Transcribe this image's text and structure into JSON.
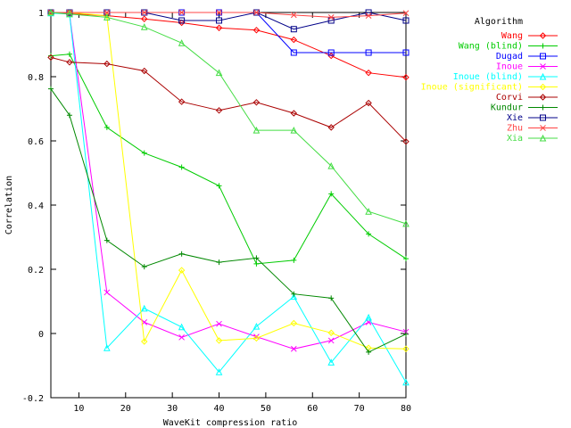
{
  "chart_data": {
    "type": "line",
    "title": "",
    "xlabel": "WaveKit compression ratio",
    "ylabel": "Correlation",
    "xlim": [
      4,
      80
    ],
    "ylim": [
      -0.2,
      1
    ],
    "xticks": [
      10,
      20,
      30,
      40,
      50,
      60,
      70,
      80
    ],
    "xtick_labels": [
      "10",
      "20",
      "30",
      "40",
      "50",
      "60",
      "70",
      "80"
    ],
    "yticks": [
      -0.2,
      0,
      0.2,
      0.4,
      0.6,
      0.8,
      1
    ],
    "ytick_labels": [
      "-0.2",
      "0",
      "0.2",
      "0.4",
      "0.6",
      "0.8",
      "1"
    ],
    "grid": false,
    "legend_title": "Algorithm",
    "legend_position": "outside right",
    "series": [
      {
        "name": "Wang",
        "color": "#ff0000",
        "marker": "diamond",
        "x": [
          4,
          8,
          16,
          24,
          32,
          40,
          48,
          56,
          64,
          72,
          80
        ],
        "y": [
          1.0,
          0.996,
          0.99,
          0.98,
          0.968,
          0.952,
          0.945,
          0.915,
          0.865,
          0.812,
          0.798
        ]
      },
      {
        "name": "Wang (blind)",
        "color": "#00cc00",
        "marker": "plus",
        "x": [
          4,
          8,
          16,
          24,
          32,
          40,
          48,
          56,
          64,
          72,
          80
        ],
        "y": [
          0.865,
          0.87,
          0.642,
          0.562,
          0.518,
          0.46,
          0.217,
          0.228,
          0.435,
          0.31,
          0.233
        ]
      },
      {
        "name": "Dugad",
        "color": "#0000ff",
        "marker": "square",
        "x": [
          4,
          8,
          16,
          24,
          32,
          40,
          48,
          56,
          64,
          72,
          80
        ],
        "y": [
          1.0,
          1.0,
          1.0,
          1.0,
          1.0,
          1.0,
          1.0,
          0.875,
          0.875,
          0.875,
          0.875
        ]
      },
      {
        "name": "Inoue",
        "color": "#ff00ff",
        "marker": "x",
        "x": [
          4,
          8,
          16,
          24,
          32,
          40,
          48,
          56,
          64,
          72,
          80
        ],
        "y": [
          1.0,
          0.995,
          0.128,
          0.035,
          -0.012,
          0.03,
          -0.01,
          -0.048,
          -0.022,
          0.035,
          0.005
        ]
      },
      {
        "name": "Inoue (blind)",
        "color": "#00ffff",
        "marker": "triangle",
        "x": [
          4,
          8,
          16,
          24,
          32,
          40,
          48,
          56,
          64,
          72,
          80
        ],
        "y": [
          0.998,
          0.995,
          -0.045,
          0.078,
          0.02,
          -0.12,
          0.022,
          0.115,
          -0.09,
          0.05,
          -0.152
        ]
      },
      {
        "name": "Inoue (significant)",
        "color": "#ffff00",
        "marker": "diamond",
        "x": [
          4,
          8,
          16,
          24,
          32,
          40,
          48,
          56,
          64,
          72,
          80
        ],
        "y": [
          1.0,
          1.0,
          0.99,
          -0.025,
          0.197,
          -0.022,
          -0.015,
          0.032,
          0.002,
          -0.045,
          -0.048
        ]
      },
      {
        "name": "Corvi",
        "color": "#aa0000",
        "marker": "diamond",
        "x": [
          4,
          8,
          16,
          24,
          32,
          40,
          48,
          56,
          64,
          72,
          80
        ],
        "y": [
          0.86,
          0.845,
          0.84,
          0.818,
          0.722,
          0.695,
          0.72,
          0.686,
          0.642,
          0.718,
          0.598
        ]
      },
      {
        "name": "Kundur",
        "color": "#008800",
        "marker": "plus",
        "x": [
          4,
          8,
          16,
          24,
          32,
          40,
          48,
          56,
          64,
          72,
          80
        ],
        "y": [
          0.762,
          0.68,
          0.29,
          0.208,
          0.248,
          0.222,
          0.235,
          0.123,
          0.11,
          -0.058,
          -0.002
        ]
      },
      {
        "name": "Xie",
        "color": "#000088",
        "marker": "square",
        "x": [
          4,
          8,
          16,
          24,
          32,
          40,
          48,
          56,
          64,
          72,
          80
        ],
        "y": [
          1.0,
          1.0,
          1.0,
          1.0,
          0.975,
          0.975,
          1.0,
          0.948,
          0.975,
          1.0,
          0.975
        ]
      },
      {
        "name": "Zhu",
        "color": "#ff4444",
        "marker": "x",
        "x": [
          4,
          8,
          16,
          24,
          32,
          40,
          48,
          56,
          64,
          72,
          80
        ],
        "y": [
          1.0,
          1.0,
          1.0,
          1.0,
          1.0,
          1.0,
          1.0,
          0.992,
          0.985,
          0.99,
          0.998
        ]
      },
      {
        "name": "Xia",
        "color": "#44dd44",
        "marker": "triangle",
        "x": [
          4,
          8,
          16,
          24,
          32,
          40,
          48,
          56,
          64,
          72,
          80
        ],
        "y": [
          1.0,
          0.995,
          0.985,
          0.955,
          0.905,
          0.812,
          0.633,
          0.633,
          0.522,
          0.38,
          0.342
        ]
      }
    ]
  }
}
